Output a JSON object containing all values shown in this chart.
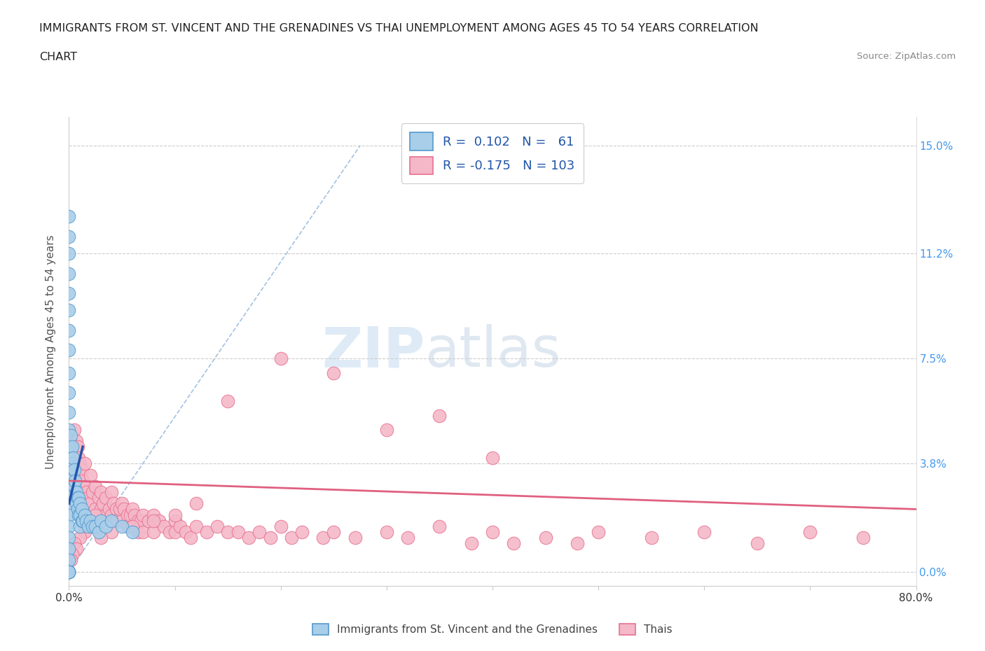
{
  "title_line1": "IMMIGRANTS FROM ST. VINCENT AND THE GRENADINES VS THAI UNEMPLOYMENT AMONG AGES 45 TO 54 YEARS CORRELATION",
  "title_line2": "CHART",
  "source": "Source: ZipAtlas.com",
  "ylabel": "Unemployment Among Ages 45 to 54 years",
  "xlim": [
    0.0,
    0.8
  ],
  "ylim": [
    -0.005,
    0.16
  ],
  "yticks": [
    0.0,
    0.038,
    0.075,
    0.112,
    0.15
  ],
  "ytick_labels_right": [
    "0.0%",
    "3.8%",
    "7.5%",
    "11.2%",
    "15.0%"
  ],
  "xtick_left_label": "0.0%",
  "xtick_right_label": "80.0%",
  "color_blue": "#A8CEEA",
  "color_pink": "#F4B8C8",
  "color_blue_edge": "#5599CC",
  "color_pink_edge": "#E87090",
  "color_blue_line": "#2255AA",
  "color_pink_line": "#E06080",
  "color_diag": "#99BBDD",
  "watermark_zip": "ZIP",
  "watermark_atlas": "atlas",
  "blue_scatter_x": [
    0.0,
    0.0,
    0.0,
    0.0,
    0.0,
    0.0,
    0.0,
    0.0,
    0.0,
    0.0,
    0.0,
    0.0,
    0.0,
    0.0,
    0.0,
    0.0,
    0.0,
    0.0,
    0.0,
    0.0,
    0.0,
    0.0,
    0.0,
    0.0,
    0.0,
    0.0,
    0.0,
    0.0,
    0.0,
    0.0,
    0.002,
    0.003,
    0.003,
    0.004,
    0.005,
    0.005,
    0.006,
    0.007,
    0.007,
    0.008,
    0.008,
    0.009,
    0.009,
    0.01,
    0.01,
    0.01,
    0.012,
    0.012,
    0.013,
    0.015,
    0.016,
    0.018,
    0.02,
    0.022,
    0.025,
    0.028,
    0.03,
    0.035,
    0.04,
    0.05,
    0.06
  ],
  "blue_scatter_y": [
    0.125,
    0.118,
    0.112,
    0.105,
    0.098,
    0.092,
    0.085,
    0.078,
    0.07,
    0.063,
    0.056,
    0.05,
    0.044,
    0.04,
    0.036,
    0.032,
    0.028,
    0.024,
    0.02,
    0.016,
    0.012,
    0.008,
    0.004,
    0.0,
    0.0,
    0.0,
    0.0,
    0.0,
    0.0,
    0.0,
    0.048,
    0.044,
    0.038,
    0.04,
    0.036,
    0.03,
    0.032,
    0.028,
    0.024,
    0.026,
    0.022,
    0.026,
    0.02,
    0.024,
    0.02,
    0.016,
    0.022,
    0.018,
    0.018,
    0.02,
    0.018,
    0.016,
    0.018,
    0.016,
    0.016,
    0.014,
    0.018,
    0.016,
    0.018,
    0.016,
    0.014
  ],
  "pink_scatter_x": [
    0.005,
    0.007,
    0.008,
    0.009,
    0.01,
    0.01,
    0.012,
    0.013,
    0.015,
    0.015,
    0.016,
    0.018,
    0.02,
    0.02,
    0.022,
    0.025,
    0.025,
    0.028,
    0.03,
    0.03,
    0.032,
    0.035,
    0.035,
    0.038,
    0.04,
    0.04,
    0.042,
    0.045,
    0.045,
    0.048,
    0.05,
    0.05,
    0.052,
    0.055,
    0.055,
    0.058,
    0.06,
    0.06,
    0.062,
    0.065,
    0.065,
    0.068,
    0.07,
    0.07,
    0.075,
    0.08,
    0.08,
    0.085,
    0.09,
    0.095,
    0.1,
    0.1,
    0.105,
    0.11,
    0.115,
    0.12,
    0.13,
    0.14,
    0.15,
    0.16,
    0.17,
    0.18,
    0.19,
    0.2,
    0.21,
    0.22,
    0.24,
    0.25,
    0.27,
    0.3,
    0.32,
    0.35,
    0.38,
    0.4,
    0.42,
    0.45,
    0.48,
    0.5,
    0.55,
    0.6,
    0.65,
    0.7,
    0.75,
    0.25,
    0.3,
    0.15,
    0.2,
    0.35,
    0.4,
    0.12,
    0.1,
    0.08,
    0.06,
    0.04,
    0.03,
    0.025,
    0.02,
    0.015,
    0.01,
    0.005,
    0.007,
    0.003,
    0.002
  ],
  "pink_scatter_y": [
    0.05,
    0.046,
    0.044,
    0.04,
    0.038,
    0.034,
    0.036,
    0.032,
    0.038,
    0.03,
    0.028,
    0.026,
    0.034,
    0.024,
    0.028,
    0.03,
    0.022,
    0.026,
    0.028,
    0.022,
    0.024,
    0.026,
    0.02,
    0.022,
    0.028,
    0.02,
    0.024,
    0.022,
    0.018,
    0.022,
    0.024,
    0.018,
    0.022,
    0.02,
    0.016,
    0.02,
    0.022,
    0.016,
    0.02,
    0.018,
    0.014,
    0.018,
    0.02,
    0.014,
    0.018,
    0.02,
    0.014,
    0.018,
    0.016,
    0.014,
    0.018,
    0.014,
    0.016,
    0.014,
    0.012,
    0.016,
    0.014,
    0.016,
    0.014,
    0.014,
    0.012,
    0.014,
    0.012,
    0.016,
    0.012,
    0.014,
    0.012,
    0.014,
    0.012,
    0.014,
    0.012,
    0.016,
    0.01,
    0.014,
    0.01,
    0.012,
    0.01,
    0.014,
    0.012,
    0.014,
    0.01,
    0.014,
    0.012,
    0.07,
    0.05,
    0.06,
    0.075,
    0.055,
    0.04,
    0.024,
    0.02,
    0.018,
    0.016,
    0.014,
    0.012,
    0.02,
    0.016,
    0.014,
    0.012,
    0.01,
    0.008,
    0.006,
    0.004
  ],
  "blue_trend_x": [
    0.0,
    0.013
  ],
  "blue_trend_y": [
    0.024,
    0.044
  ],
  "pink_trend_x": [
    0.0,
    0.8
  ],
  "pink_trend_y": [
    0.032,
    0.022
  ]
}
